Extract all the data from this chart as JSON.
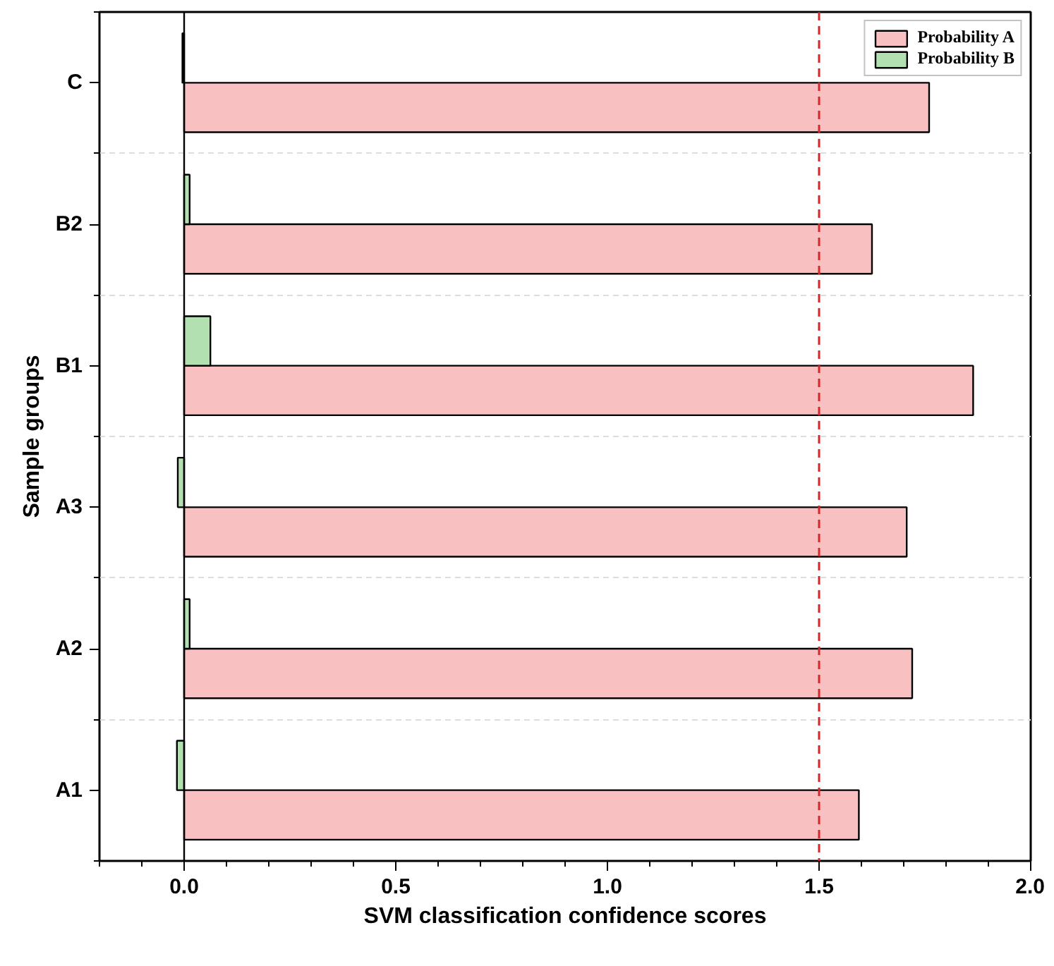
{
  "chart_data": {
    "type": "bar",
    "orientation": "horizontal",
    "xlabel": "SVM classification confidence scores",
    "ylabel": "Sample groups",
    "categories": [
      "C",
      "B2",
      "B1",
      "A3",
      "A2",
      "A1"
    ],
    "series": [
      {
        "name": "Probability A",
        "color": "#f9c0c2",
        "values": [
          1.76,
          1.625,
          1.864,
          1.707,
          1.72,
          1.594
        ]
      },
      {
        "name": "Probability B",
        "color": "#b3e0b0",
        "values": [
          -0.004,
          0.013,
          0.062,
          -0.015,
          0.013,
          -0.017
        ]
      }
    ],
    "xlim": [
      -0.2,
      2.0
    ],
    "xticks": [
      {
        "value": 0,
        "label": "0.0"
      },
      0.5,
      {
        "value": 1,
        "label": "1.0"
      },
      1.5,
      {
        "value": 2,
        "label": "2.0"
      }
    ],
    "ref_lines": [
      {
        "axis": "x",
        "value": 1.5,
        "color": "#d62728",
        "line_style": "dashed"
      }
    ],
    "grid": "y",
    "legend": "top right"
  }
}
